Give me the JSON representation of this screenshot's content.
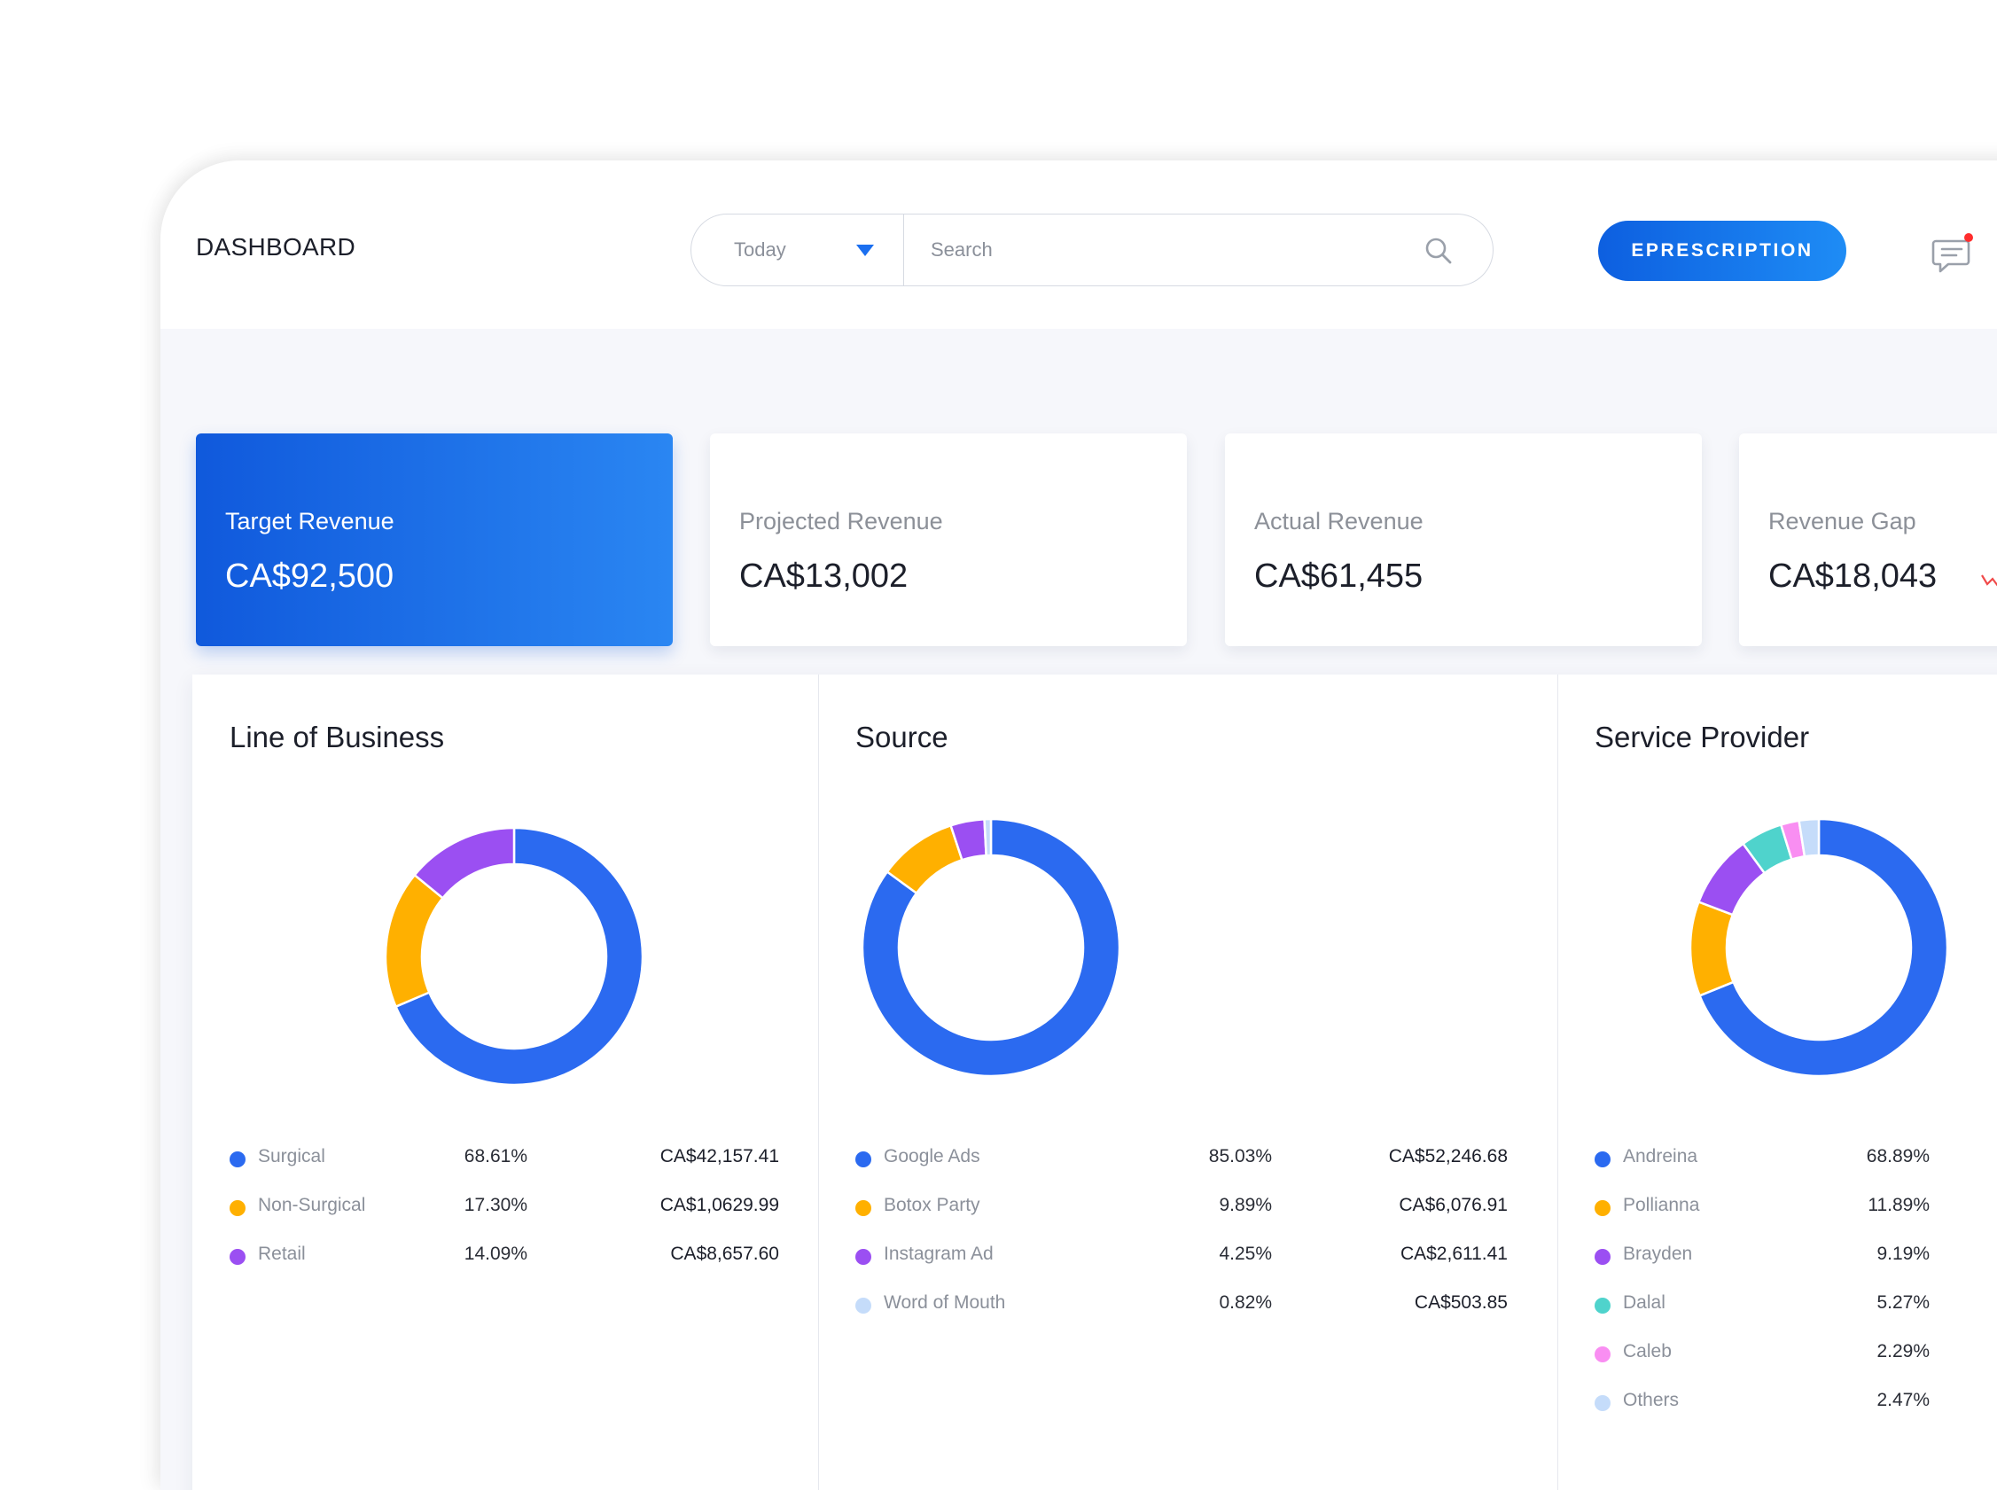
{
  "header": {
    "title": "DASHBOARD",
    "period": "Today",
    "search_placeholder": "Search",
    "eprescription_label": "EPRESCRIPTION"
  },
  "cards": [
    {
      "label": "Target Revenue",
      "value": "CA$92,500"
    },
    {
      "label": "Projected Revenue",
      "value": "CA$13,002"
    },
    {
      "label": "Actual Revenue",
      "value": "CA$61,455"
    },
    {
      "label": "Revenue Gap",
      "value": "CA$18,043"
    }
  ],
  "colors": {
    "accent": "#1b6ff0",
    "blue": "#2b6af0",
    "amber": "#ffb000",
    "purple": "#9b4ff2",
    "teal": "#4fd3cc",
    "pink": "#f98ef2",
    "light_blue": "#c5dcfa",
    "notification": "#ff2d2d",
    "trend": "#f04a4a"
  },
  "chart_data": [
    {
      "type": "pie",
      "title": "Line of Business",
      "items": [
        {
          "name": "Surgical",
          "percent": "68.61%",
          "value": 68.61,
          "amount": "CA$42,157.41",
          "color": "#2b6af0"
        },
        {
          "name": "Non-Surgical",
          "percent": "17.30%",
          "value": 17.3,
          "amount": "CA$1,0629.99",
          "color": "#ffb000"
        },
        {
          "name": "Retail",
          "percent": "14.09%",
          "value": 14.09,
          "amount": "CA$8,657.60",
          "color": "#9b4ff2"
        }
      ]
    },
    {
      "type": "pie",
      "title": "Source",
      "items": [
        {
          "name": "Google Ads",
          "percent": "85.03%",
          "value": 85.03,
          "amount": "CA$52,246.68",
          "color": "#2b6af0"
        },
        {
          "name": "Botox Party",
          "percent": "9.89%",
          "value": 9.89,
          "amount": "CA$6,076.91",
          "color": "#ffb000"
        },
        {
          "name": "Instagram Ad",
          "percent": "4.25%",
          "value": 4.25,
          "amount": "CA$2,611.41",
          "color": "#9b4ff2"
        },
        {
          "name": "Word of Mouth",
          "percent": "0.82%",
          "value": 0.82,
          "amount": "CA$503.85",
          "color": "#c5dcfa"
        }
      ]
    },
    {
      "type": "pie",
      "title": "Service Provider",
      "items": [
        {
          "name": "Andreina",
          "percent": "68.89%",
          "value": 68.89,
          "color": "#2b6af0"
        },
        {
          "name": "Pollianna",
          "percent": "11.89%",
          "value": 11.89,
          "color": "#ffb000"
        },
        {
          "name": "Brayden",
          "percent": "9.19%",
          "value": 9.19,
          "color": "#9b4ff2"
        },
        {
          "name": "Dalal",
          "percent": "5.27%",
          "value": 5.27,
          "color": "#4fd3cc"
        },
        {
          "name": "Caleb",
          "percent": "2.29%",
          "value": 2.29,
          "color": "#f98ef2"
        },
        {
          "name": "Others",
          "percent": "2.47%",
          "value": 2.47,
          "color": "#c5dcfa"
        }
      ]
    }
  ]
}
